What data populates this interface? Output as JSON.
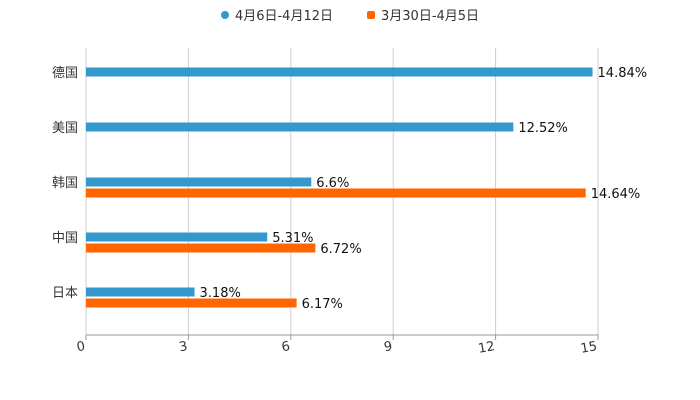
{
  "chart_data": {
    "type": "bar",
    "orientation": "horizontal",
    "title": "",
    "xlabel": "",
    "ylabel": "",
    "categories": [
      "德国",
      "美国",
      "韩国",
      "中国",
      "日本"
    ],
    "series": [
      {
        "name": "4月6日-4月12日",
        "color": "#3399cc",
        "values": [
          14.84,
          12.52,
          6.6,
          5.31,
          3.18
        ],
        "labels": [
          "14.84%",
          "12.52%",
          "6.6%",
          "5.31%",
          "3.18%"
        ]
      },
      {
        "name": "3月30日-4月5日",
        "color": "#ff6600",
        "values": [
          null,
          null,
          14.64,
          6.72,
          6.17
        ],
        "labels": [
          null,
          null,
          "14.64%",
          "6.72%",
          "6.17%"
        ]
      }
    ],
    "xlim": [
      0,
      15
    ],
    "xticks": [
      "0",
      "3",
      "6",
      "9",
      "12",
      "15"
    ],
    "grid": true,
    "legend_position": "top-center"
  }
}
